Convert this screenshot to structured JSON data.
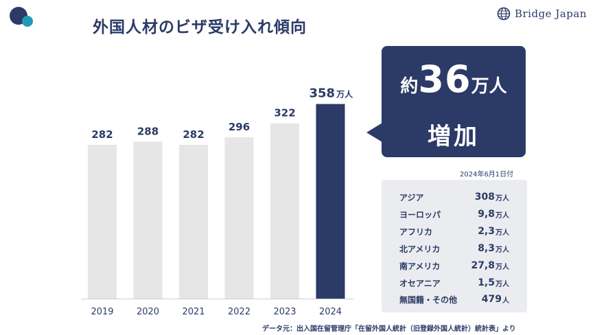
{
  "header": {
    "title": "外国人材のビザ受け入れ傾向",
    "brand": "Bridge Japan",
    "brand_icon": "globe-icon",
    "logo_colors": [
      "#2b3a67",
      "#1f9bb3"
    ]
  },
  "chart_data": {
    "type": "bar",
    "categories": [
      "2019",
      "2020",
      "2021",
      "2022",
      "2023",
      "2024"
    ],
    "values": [
      282,
      288,
      282,
      296,
      322,
      358
    ],
    "data_labels": [
      "282",
      "288",
      "282",
      "296",
      "322",
      "358"
    ],
    "highlight_unit": "万人",
    "highlight_index": 5,
    "colors": {
      "default": "#e6e6e6",
      "highlight": "#2b3a67"
    },
    "ylim": [
      0,
      400
    ],
    "grid": false
  },
  "callout": {
    "prefix": "約",
    "number": "36",
    "unit": "万人",
    "text": "増加"
  },
  "breakdown": {
    "as_of": "2024年6月1日付",
    "rows": [
      {
        "label": "アジア",
        "value": "308",
        "unit": "万人"
      },
      {
        "label": "ヨーロッパ",
        "value": "9,8",
        "unit": "万人"
      },
      {
        "label": "アフリカ",
        "value": "2,3",
        "unit": "万人"
      },
      {
        "label": "北アメリカ",
        "value": "8,3",
        "unit": "万人"
      },
      {
        "label": "南アメリカ",
        "value": "27,8",
        "unit": "万人"
      },
      {
        "label": "オセアニア",
        "value": "1,5",
        "unit": "万人"
      },
      {
        "label": "無国籍・その他",
        "value": "479",
        "unit": "人"
      }
    ]
  },
  "source": "データ元：出入国在留管理庁「在留外国人統計（旧登録外国人統計）統計表」より"
}
